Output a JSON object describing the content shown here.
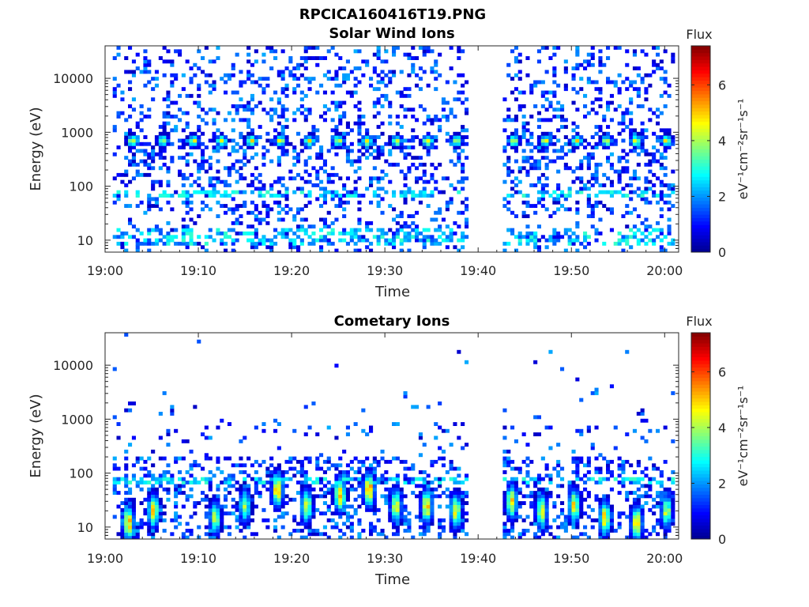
{
  "figure_title": "RPCICA160416T19.PNG",
  "colors": {
    "axis": "#262626",
    "colormap": [
      "#00008f",
      "#0000ff",
      "#0080ff",
      "#00ffff",
      "#80ff80",
      "#ffff00",
      "#ff8000",
      "#ff0000",
      "#800000"
    ]
  },
  "chart_data": [
    {
      "type": "heatmap",
      "title": "Solar Wind Ions",
      "xlabel": "Time",
      "ylabel": "Energy (eV)",
      "x_ticks": [
        "19:00",
        "19:10",
        "19:20",
        "19:30",
        "19:40",
        "19:50",
        "20:00"
      ],
      "y_ticks": [
        "10",
        "100",
        "1000",
        "10000"
      ],
      "y_scale": "log",
      "xlim_minutes": [
        0,
        61.5
      ],
      "ylim_eV": [
        6,
        40000
      ],
      "data_gap_minutes": [
        39,
        42.5
      ],
      "colorbar": {
        "title": "Flux",
        "label": "eV⁻¹cm⁻²sr⁻¹s⁻¹",
        "ticks": [
          "0",
          "2",
          "4",
          "6"
        ],
        "range": [
          0,
          7.4
        ]
      },
      "peak_bursts": [
        {
          "t": 3.0,
          "e": 700,
          "v": 4.6
        },
        {
          "t": 6.2,
          "e": 700,
          "v": 4.4
        },
        {
          "t": 9.5,
          "e": 700,
          "v": 4.6
        },
        {
          "t": 12.5,
          "e": 700,
          "v": 4.5
        },
        {
          "t": 15.7,
          "e": 700,
          "v": 4.6
        },
        {
          "t": 18.8,
          "e": 700,
          "v": 4.7
        },
        {
          "t": 21.9,
          "e": 700,
          "v": 4.5
        },
        {
          "t": 25.0,
          "e": 700,
          "v": 4.6
        },
        {
          "t": 28.1,
          "e": 700,
          "v": 4.7
        },
        {
          "t": 31.3,
          "e": 700,
          "v": 4.5
        },
        {
          "t": 34.6,
          "e": 700,
          "v": 4.6
        },
        {
          "t": 37.7,
          "e": 700,
          "v": 4.5
        },
        {
          "t": 43.8,
          "e": 700,
          "v": 4.6
        },
        {
          "t": 47.2,
          "e": 700,
          "v": 4.6
        },
        {
          "t": 50.6,
          "e": 700,
          "v": 4.7
        },
        {
          "t": 53.8,
          "e": 700,
          "v": 4.5
        },
        {
          "t": 56.9,
          "e": 700,
          "v": 4.6
        },
        {
          "t": 60.2,
          "e": 700,
          "v": 4.7
        }
      ]
    },
    {
      "type": "heatmap",
      "title": "Cometary Ions",
      "xlabel": "Time",
      "ylabel": "Energy (eV)",
      "x_ticks": [
        "19:00",
        "19:10",
        "19:20",
        "19:30",
        "19:40",
        "19:50",
        "20:00"
      ],
      "y_ticks": [
        "10",
        "100",
        "1000",
        "10000"
      ],
      "y_scale": "log",
      "xlim_minutes": [
        0,
        61.5
      ],
      "ylim_eV": [
        6,
        40000
      ],
      "data_gap_minutes": [
        39,
        42.5
      ],
      "colorbar": {
        "title": "Flux",
        "label": "eV⁻¹cm⁻²sr⁻¹s⁻¹",
        "ticks": [
          "0",
          "2",
          "4",
          "6"
        ],
        "range": [
          0,
          7.4
        ]
      },
      "peak_bursts": [
        {
          "t": 2.5,
          "e": 12,
          "v": 5.2
        },
        {
          "t": 5.2,
          "e": 20,
          "v": 4.8
        },
        {
          "t": 11.8,
          "e": 15,
          "v": 4.2
        },
        {
          "t": 15.0,
          "e": 25,
          "v": 4.0
        },
        {
          "t": 18.5,
          "e": 50,
          "v": 5.4
        },
        {
          "t": 21.6,
          "e": 25,
          "v": 4.5
        },
        {
          "t": 25.2,
          "e": 40,
          "v": 5.3
        },
        {
          "t": 28.3,
          "e": 50,
          "v": 5.6
        },
        {
          "t": 31.2,
          "e": 25,
          "v": 4.6
        },
        {
          "t": 34.5,
          "e": 25,
          "v": 5.1
        },
        {
          "t": 37.6,
          "e": 20,
          "v": 4.6
        },
        {
          "t": 43.6,
          "e": 30,
          "v": 4.8
        },
        {
          "t": 46.8,
          "e": 20,
          "v": 4.6
        },
        {
          "t": 50.3,
          "e": 25,
          "v": 4.8
        },
        {
          "t": 53.6,
          "e": 15,
          "v": 5.0
        },
        {
          "t": 57.0,
          "e": 12,
          "v": 5.2
        },
        {
          "t": 60.2,
          "e": 20,
          "v": 4.3
        }
      ]
    }
  ]
}
